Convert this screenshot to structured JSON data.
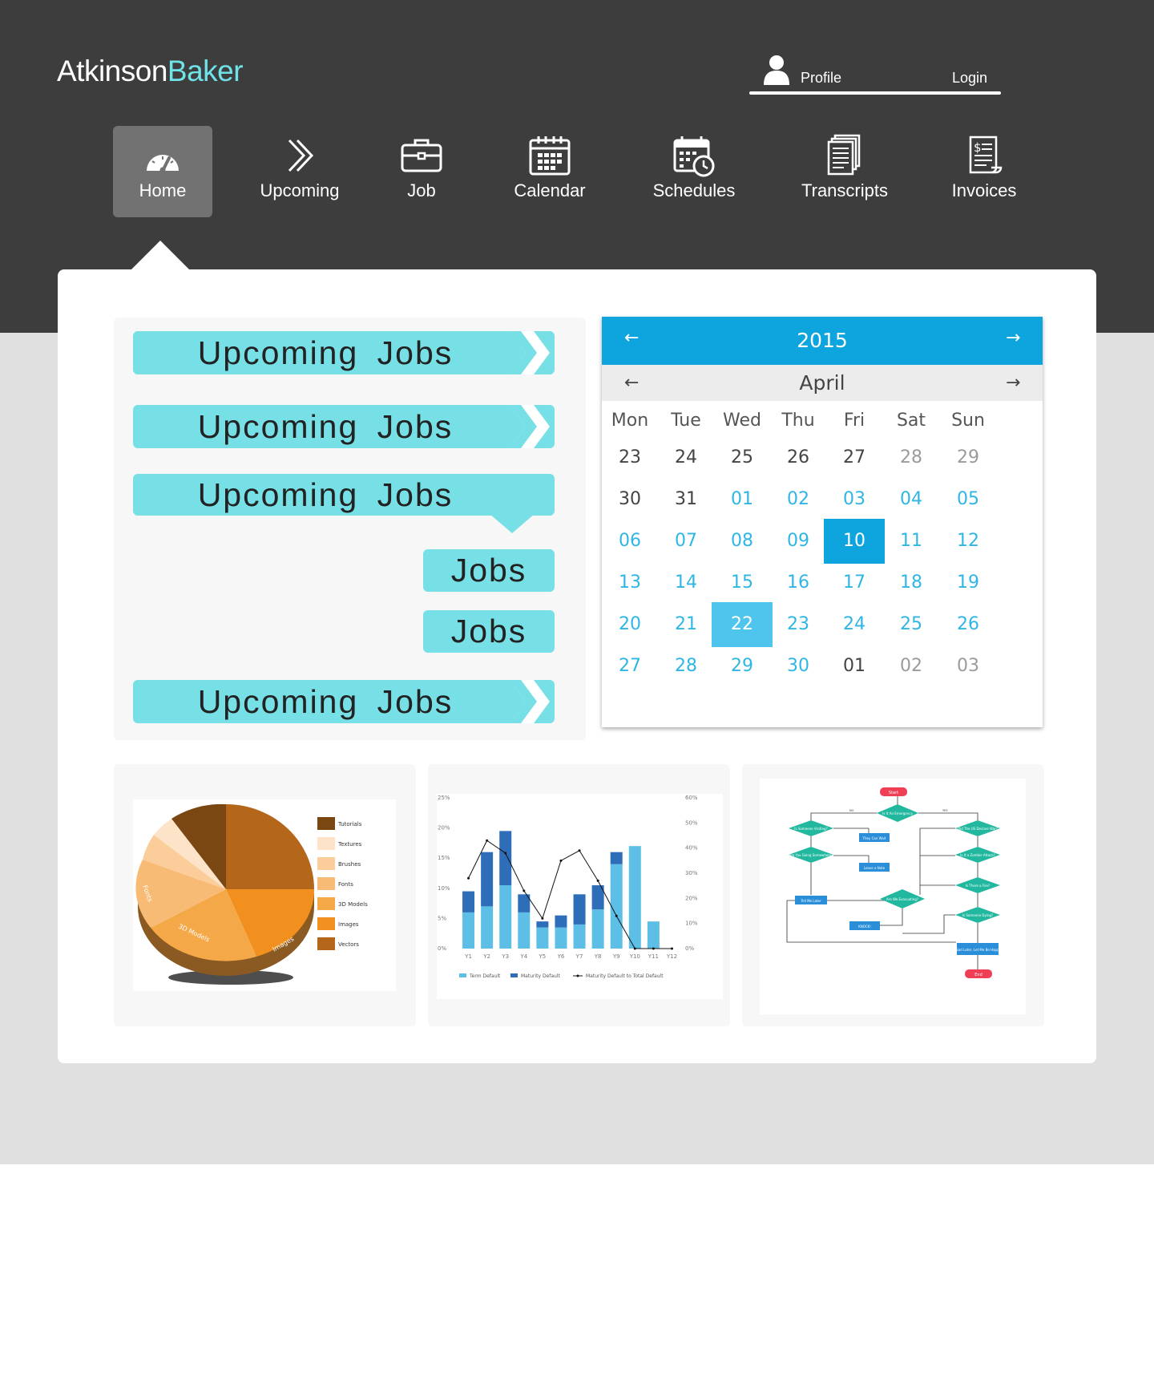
{
  "header": {
    "logo_main": "Atkinson",
    "logo_accent": "Baker",
    "profile_label": "Profile",
    "login_label": "Login"
  },
  "nav": [
    {
      "label": "Home",
      "icon": "speedometer-icon",
      "active": true
    },
    {
      "label": "Upcoming",
      "icon": "double-chevron-right-icon"
    },
    {
      "label": "Job",
      "icon": "briefcase-icon"
    },
    {
      "label": "Calendar",
      "icon": "calendar-icon"
    },
    {
      "label": "Schedules",
      "icon": "calendar-clock-icon"
    },
    {
      "label": "Transcripts",
      "icon": "documents-icon"
    },
    {
      "label": "Invoices",
      "icon": "invoice-icon"
    }
  ],
  "jobs": {
    "items": [
      {
        "label": "Upcoming  Jobs",
        "style": "chevron"
      },
      {
        "label": "Upcoming  Jobs",
        "style": "chevron"
      },
      {
        "label": "Upcoming  Jobs",
        "style": "callout"
      },
      {
        "label": "Jobs",
        "style": "small"
      },
      {
        "label": "Jobs",
        "style": "small"
      },
      {
        "label": "Upcoming  Jobs",
        "style": "chevron"
      }
    ]
  },
  "calendar": {
    "year": "2015",
    "month": "April",
    "weekdays": [
      "Mon",
      "Tue",
      "Wed",
      "Thu",
      "Fri",
      "Sat",
      "Sun"
    ],
    "weeks": [
      [
        "23",
        "24",
        "25",
        "26",
        "27",
        "28",
        "29"
      ],
      [
        "30",
        "31",
        "01",
        "02",
        "03",
        "04",
        "05"
      ],
      [
        "06",
        "07",
        "08",
        "09",
        "10",
        "11",
        "12"
      ],
      [
        "13",
        "14",
        "15",
        "16",
        "17",
        "18",
        "19"
      ],
      [
        "20",
        "21",
        "22",
        "23",
        "24",
        "25",
        "26"
      ],
      [
        "27",
        "28",
        "29",
        "30",
        "01",
        "02",
        "03"
      ]
    ],
    "selected_primary": "10",
    "selected_secondary": "22",
    "colors": {
      "header": "#0ea4dd",
      "current_month": "#2fb6e4",
      "other_month_weekday": "#444444",
      "other_month_weekend": "#9b9b9b"
    }
  },
  "thumbnails": {
    "pie_legend": [
      "Tutorials",
      "Textures",
      "Brushes",
      "Fonts",
      "3D Models",
      "Images",
      "Vectors"
    ],
    "pie_labels": [
      "Fonts",
      "3D Models",
      "Images"
    ],
    "bar_legend": [
      "Term Default",
      "Maturity Default",
      "Maturity Default to Total Default"
    ],
    "flow_labels": [
      "Start",
      "Is It An Emergency",
      "Is Someone Visiting?",
      "They Can Wait",
      "Are You Going Somewhere?",
      "Leave a Note",
      "Did The US Declare War?",
      "Is It a Zombie Attack?",
      "Is There a Fire?",
      "Is Someone Dying?",
      "Are We Evacuating?",
      "Tell Me Later",
      "KNOCK!",
      "I'll Be Sad Later, Let Me Be Happy Now",
      "End",
      "YES",
      "NO"
    ]
  },
  "chart_data": {
    "type": "bar",
    "categories": [
      "Y1",
      "Y2",
      "Y3",
      "Y4",
      "Y5",
      "Y6",
      "Y7",
      "Y8",
      "Y9",
      "Y10",
      "Y11",
      "Y12"
    ],
    "series": [
      {
        "name": "Term Default",
        "values": [
          6,
          7,
          10.5,
          6,
          3.5,
          3.5,
          4,
          6.5,
          14,
          17,
          4.5,
          0
        ]
      },
      {
        "name": "Maturity Default",
        "values": [
          3.5,
          9,
          9,
          3,
          1,
          2,
          5,
          4,
          2,
          0,
          0,
          0
        ]
      },
      {
        "name": "Maturity Default to Total Default",
        "axis": "right",
        "values": [
          28,
          43,
          38,
          23,
          12,
          35,
          39,
          27,
          13,
          0,
          0,
          0
        ]
      }
    ],
    "ylim": [
      0,
      25
    ],
    "y_ticks": [
      "0%",
      "5%",
      "10%",
      "15%",
      "20%",
      "25%"
    ],
    "y2lim": [
      0,
      60
    ],
    "y2_ticks": [
      "0%",
      "10%",
      "20%",
      "30%",
      "40%",
      "50%",
      "60%"
    ]
  }
}
